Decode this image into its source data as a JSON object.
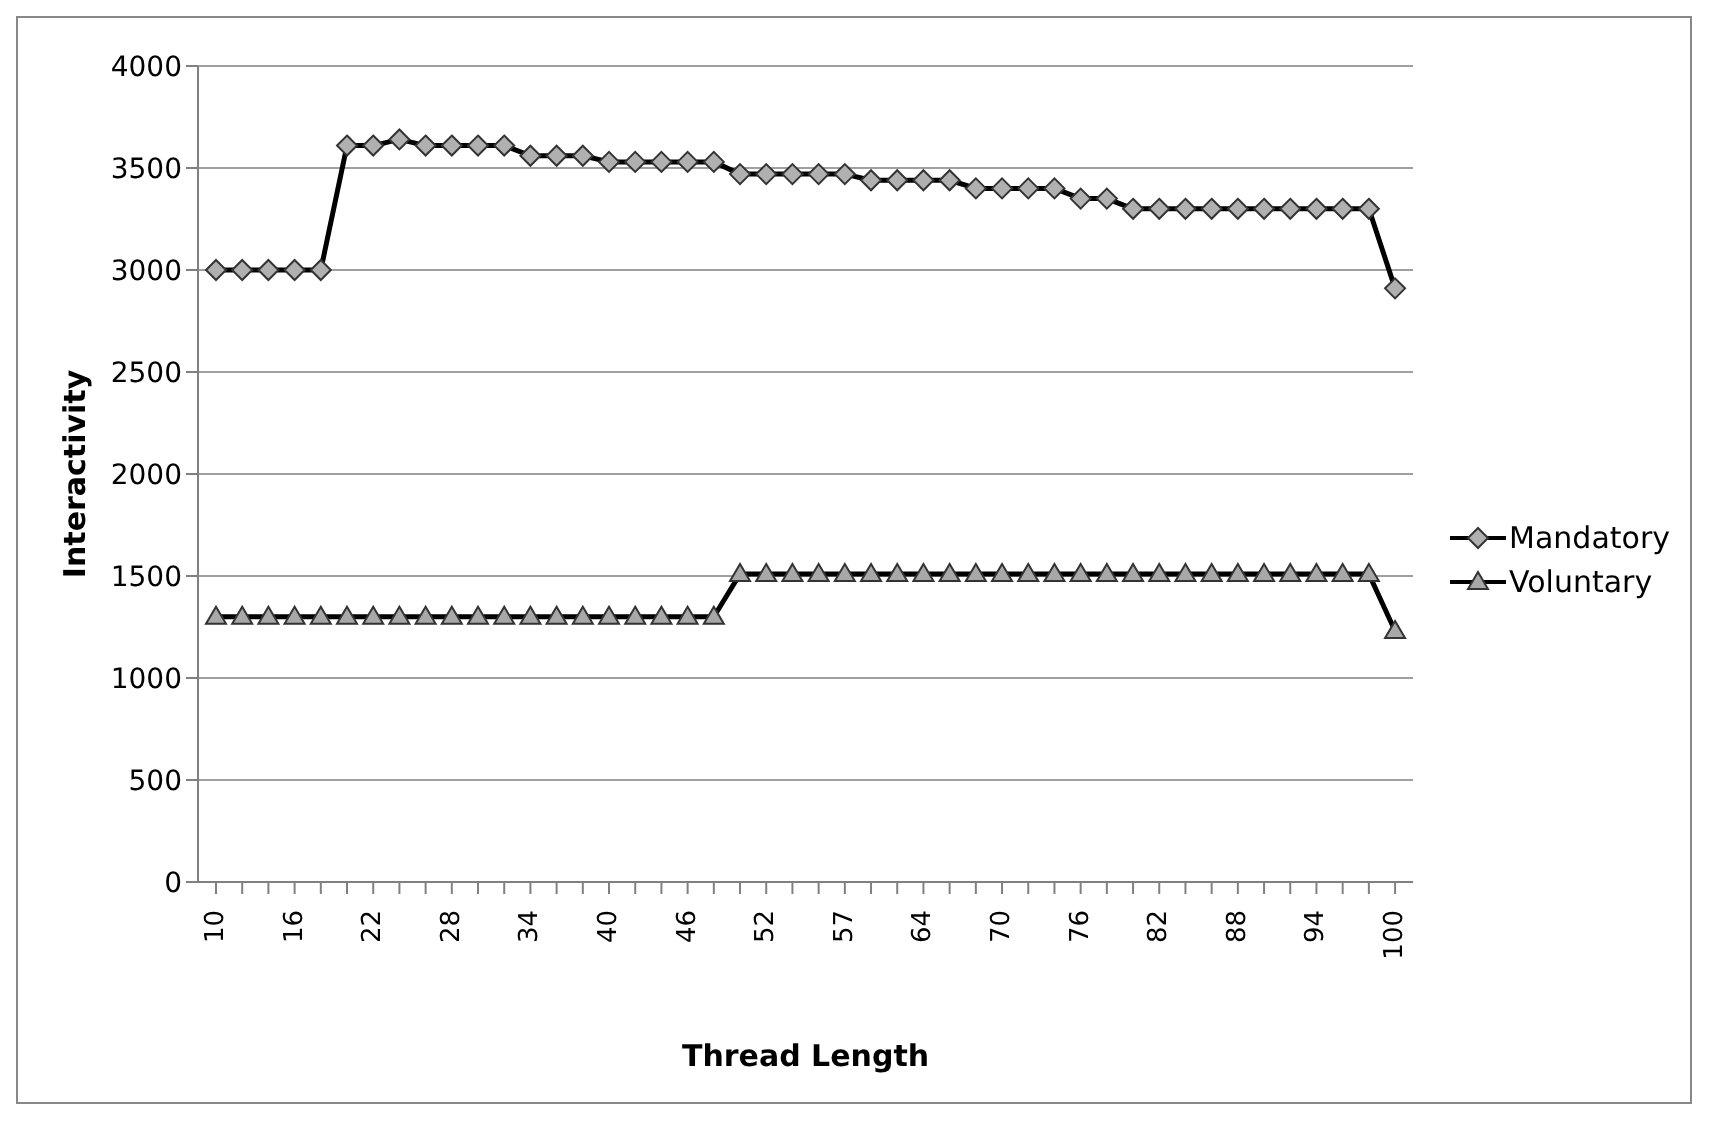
{
  "chart_data": {
    "type": "line",
    "xlabel": "Thread Length",
    "ylabel": "Interactivity",
    "categories": [
      "10",
      null,
      null,
      "16",
      null,
      null,
      "22",
      null,
      null,
      "28",
      null,
      null,
      "34",
      null,
      null,
      "40",
      null,
      null,
      "46",
      null,
      null,
      "52",
      null,
      null,
      "57",
      null,
      null,
      "64",
      null,
      null,
      "70",
      null,
      null,
      "76",
      null,
      null,
      "82",
      null,
      null,
      "88",
      null,
      null,
      "94",
      null,
      null,
      "100"
    ],
    "series": [
      {
        "name": "Mandatory",
        "color": "#000000",
        "marker": "diamond",
        "values": [
          3000,
          3000,
          3000,
          3000,
          3000,
          3610,
          3610,
          3640,
          3610,
          3610,
          3610,
          3610,
          3560,
          3560,
          3560,
          3530,
          3530,
          3530,
          3530,
          3530,
          3470,
          3470,
          3470,
          3470,
          3470,
          3440,
          3440,
          3440,
          3440,
          3400,
          3400,
          3400,
          3400,
          3350,
          3350,
          3300,
          3300,
          3300,
          3300,
          3300,
          3300,
          3300,
          3300,
          3300,
          3300,
          2910
        ]
      },
      {
        "name": "Voluntary",
        "color": "#000000",
        "marker": "triangle",
        "values": [
          1300,
          1300,
          1300,
          1300,
          1300,
          1300,
          1300,
          1300,
          1300,
          1300,
          1300,
          1300,
          1300,
          1300,
          1300,
          1300,
          1300,
          1300,
          1300,
          1300,
          1510,
          1510,
          1510,
          1510,
          1510,
          1510,
          1510,
          1510,
          1510,
          1510,
          1510,
          1510,
          1510,
          1510,
          1510,
          1510,
          1510,
          1510,
          1510,
          1510,
          1510,
          1510,
          1510,
          1510,
          1510,
          1230
        ]
      }
    ],
    "ylim": [
      0,
      4000
    ],
    "yticks": [
      0,
      500,
      1000,
      1500,
      2000,
      2500,
      3000,
      3500,
      4000
    ],
    "grid": "y",
    "legend": "right"
  }
}
